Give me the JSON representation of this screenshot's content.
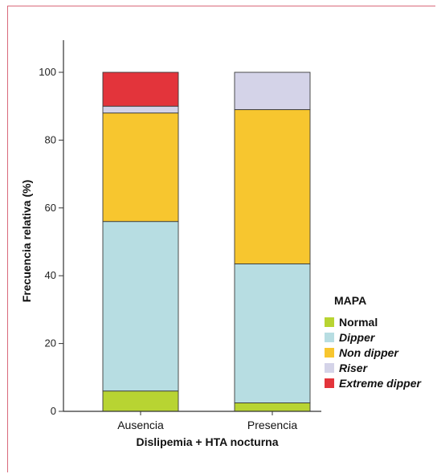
{
  "chart_data": {
    "type": "bar",
    "stacked": true,
    "categories": [
      "Ausencia",
      "Presencia"
    ],
    "xlabel": "Dislipemia + HTA nocturna",
    "ylabel": "Frecuencia relativa (%)",
    "ylim": [
      0,
      100
    ],
    "yticks": [
      0,
      20,
      40,
      60,
      80,
      100
    ],
    "legend_title": "MAPA",
    "legend_position": "right",
    "series": [
      {
        "name": "Normal",
        "color": "#b8d432",
        "italic": false,
        "values": [
          6,
          2.5
        ]
      },
      {
        "name": "Dipper",
        "color": "#b7dde2",
        "italic": true,
        "values": [
          50,
          41
        ]
      },
      {
        "name": "Non dipper",
        "color": "#f7c62f",
        "italic": true,
        "values": [
          32,
          45.5
        ]
      },
      {
        "name": "Riser",
        "color": "#d4d3e8",
        "italic": true,
        "values": [
          2,
          11
        ]
      },
      {
        "name": "Extreme dipper",
        "color": "#e3343b",
        "italic": true,
        "values": [
          10,
          0
        ]
      }
    ]
  }
}
